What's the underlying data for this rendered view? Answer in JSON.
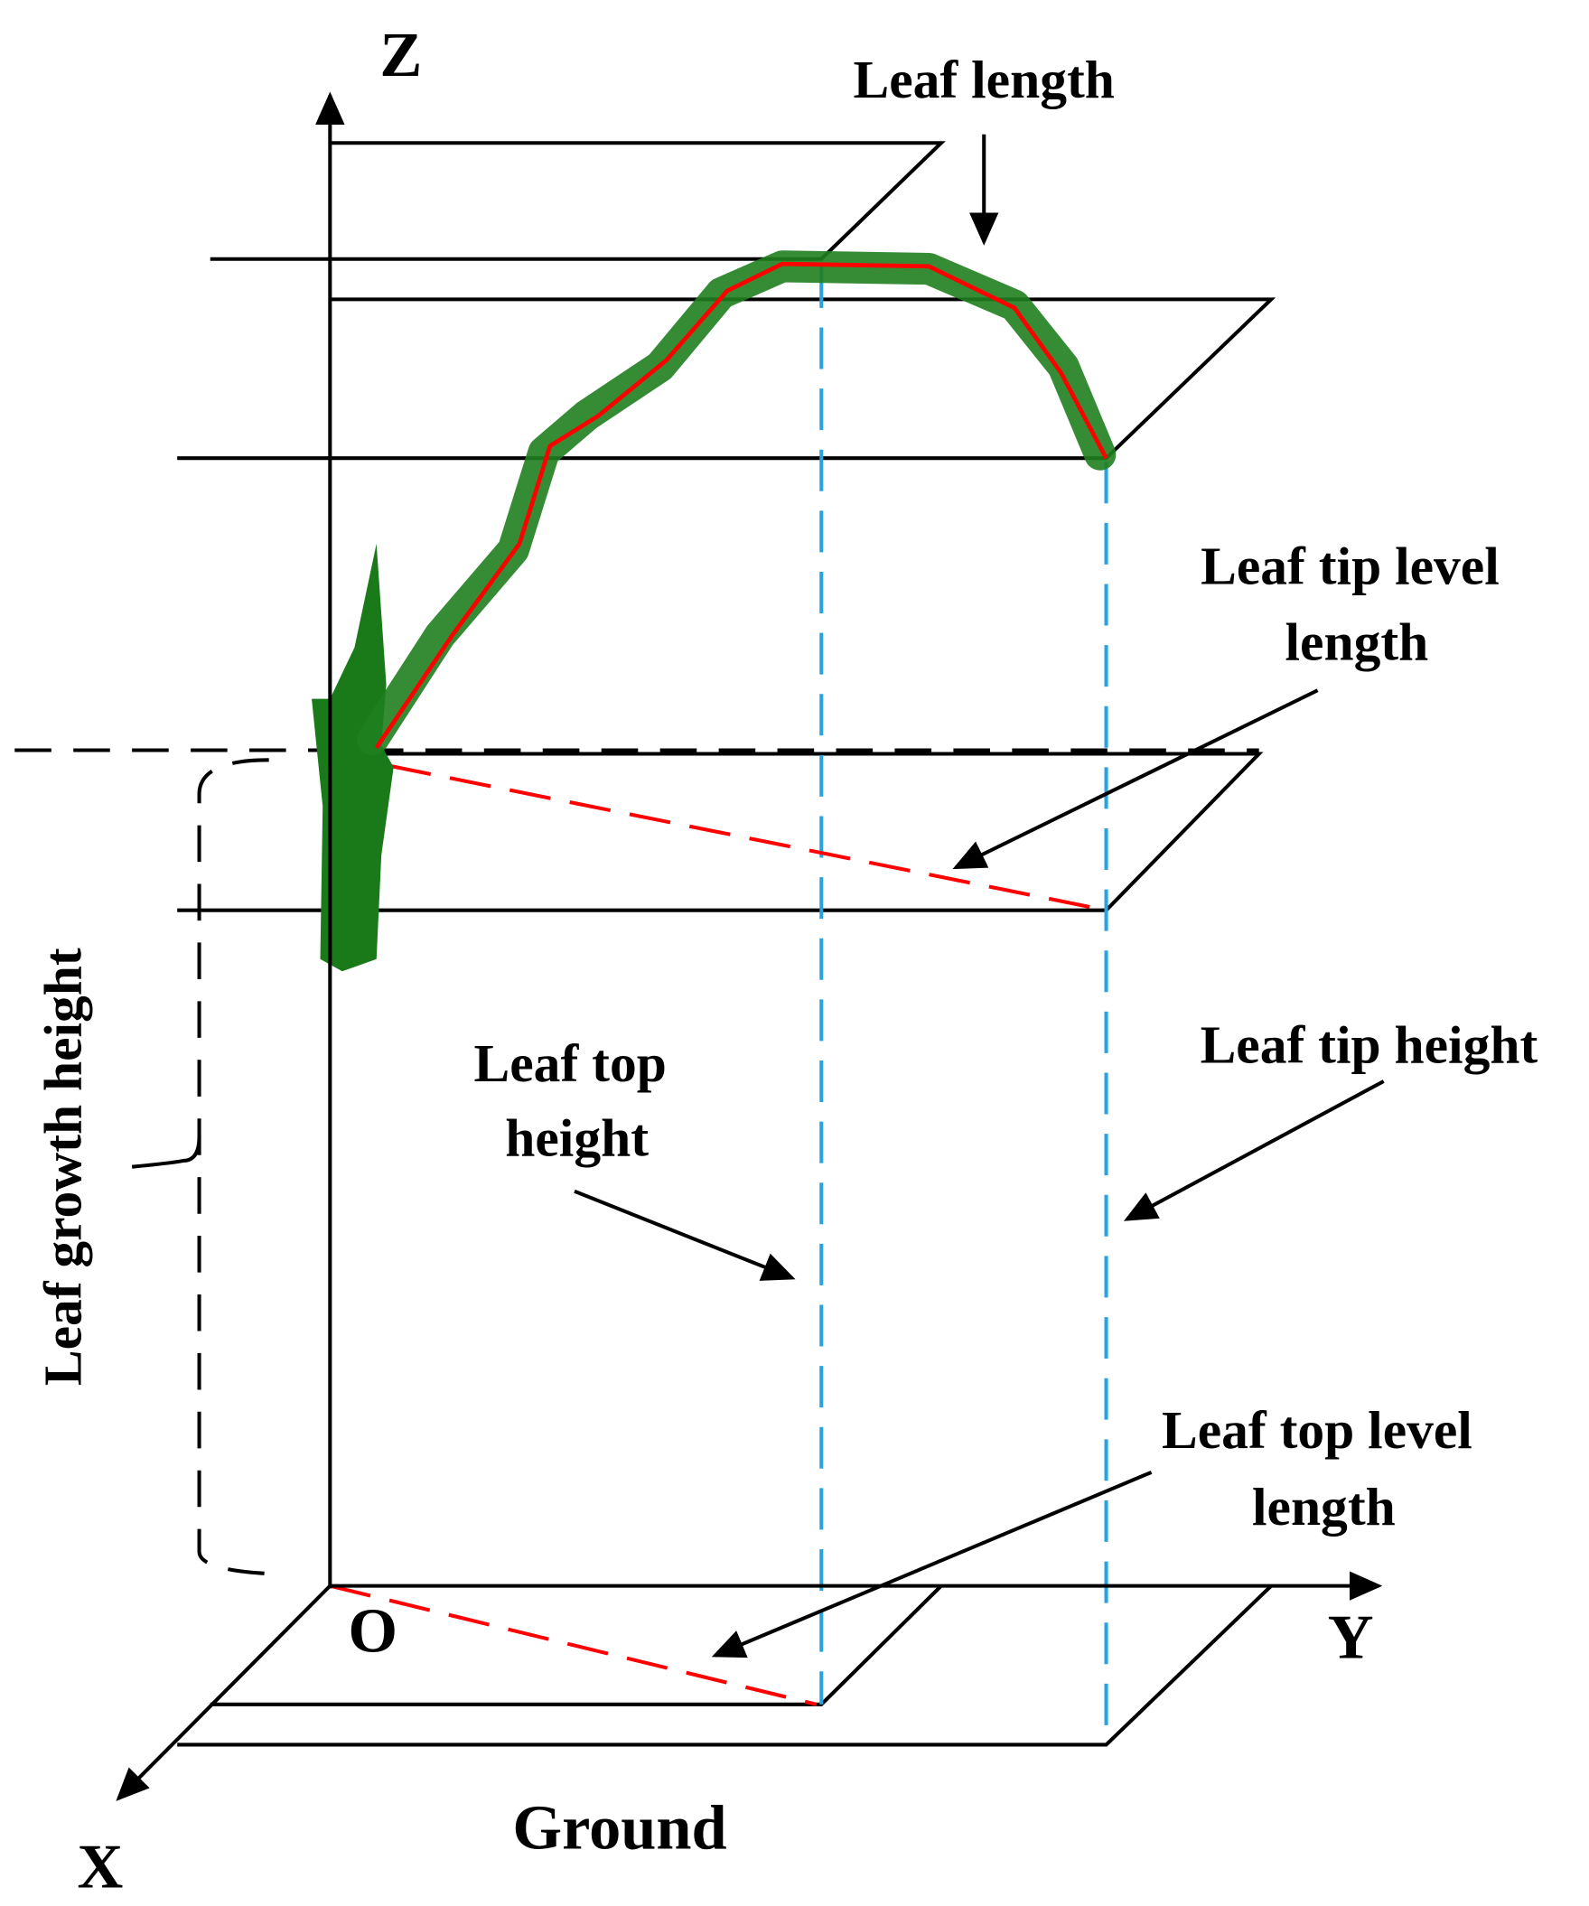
{
  "axes": {
    "z": "Z",
    "y": "Y",
    "x": "X",
    "origin": "O"
  },
  "labels": {
    "leaf_length": "Leaf length",
    "leaf_tip_level_length": [
      "Leaf tip level",
      "length"
    ],
    "leaf_tip_height": "Leaf tip height",
    "leaf_top_height": [
      "Leaf top",
      "height"
    ],
    "leaf_top_level_length": [
      "Leaf top level",
      "length"
    ],
    "leaf_growth_height": "Leaf growth height",
    "ground": "Ground"
  }
}
